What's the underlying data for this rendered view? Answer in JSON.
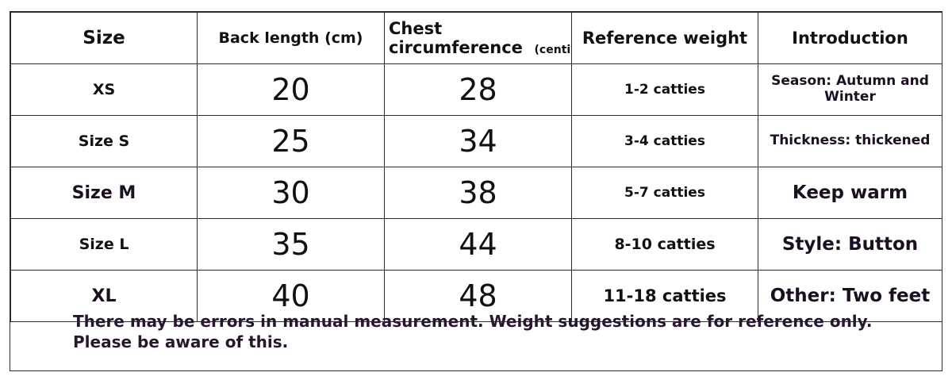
{
  "headers": {
    "size": "Size",
    "back_length": "Back length (cm)",
    "chest_line1": "Chest",
    "chest_line2": "circumference",
    "chest_unit": "(centimeter)",
    "weight": "Reference weight",
    "intro": "Introduction"
  },
  "rows": [
    {
      "size": "XS",
      "back": "20",
      "chest": "28",
      "weight": "1-2 catties",
      "intro": "Season: Autumn and Winter"
    },
    {
      "size": "Size S",
      "back": "25",
      "chest": "34",
      "weight": "3-4 catties",
      "intro": "Thickness: thickened"
    },
    {
      "size": "Size M",
      "back": "30",
      "chest": "38",
      "weight": "5-7 catties",
      "intro": "Keep warm"
    },
    {
      "size": "Size L",
      "back": "35",
      "chest": "44",
      "weight": "8-10 catties",
      "intro": "Style: Button"
    },
    {
      "size": "XL",
      "back": "40",
      "chest": "48",
      "weight": "11-18 catties",
      "intro": "Other: Two feet"
    }
  ],
  "note": {
    "line1": "There may be errors in manual measurement. Weight suggestions are for reference only.",
    "line2": "Please be aware of this."
  }
}
